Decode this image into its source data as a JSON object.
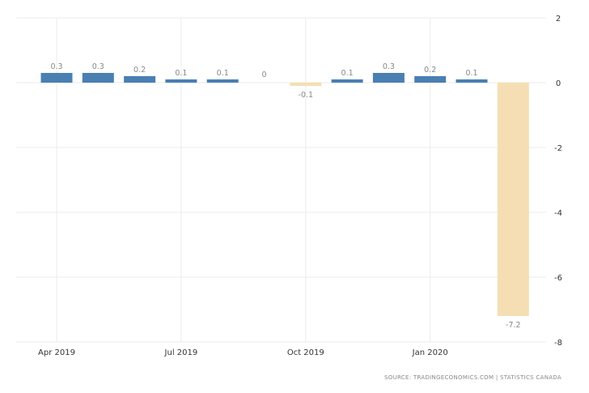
{
  "chart_data": {
    "type": "bar",
    "title": "",
    "xlabel": "",
    "ylabel": "",
    "categories": [
      "Apr 2019",
      "May 2019",
      "Jun 2019",
      "Jul 2019",
      "Aug 2019",
      "Sep 2019",
      "Oct 2019",
      "Nov 2019",
      "Dec 2019",
      "Jan 2020",
      "Feb 2020",
      "Mar 2020"
    ],
    "values": [
      0.3,
      0.3,
      0.2,
      0.1,
      0.1,
      0,
      -0.1,
      0.1,
      0.3,
      0.2,
      0.1,
      -7.2
    ],
    "data_labels": [
      "0.3",
      "0.3",
      "0.2",
      "0.1",
      "0.1",
      "0",
      "-0.1",
      "0.1",
      "0.3",
      "0.2",
      "0.1",
      "-7.2"
    ],
    "x_tick_labels": [
      {
        "label": "Apr 2019",
        "category": "Apr 2019"
      },
      {
        "label": "Jul 2019",
        "category": "Jul 2019"
      },
      {
        "label": "Oct 2019",
        "category": "Oct 2019"
      },
      {
        "label": "Jan 2020",
        "category": "Jan 2020"
      }
    ],
    "y_ticks": [
      2,
      0,
      -2,
      -4,
      -6,
      -8
    ],
    "ylim": [
      -8,
      2
    ],
    "y_axis_side": "right",
    "grid": true,
    "colors": {
      "positive": "#4a7fb2",
      "negative": "#f5deb3"
    }
  },
  "source": "SOURCE:  TRADINGECONOMICS.COM  |  STATISTICS  CANADA"
}
